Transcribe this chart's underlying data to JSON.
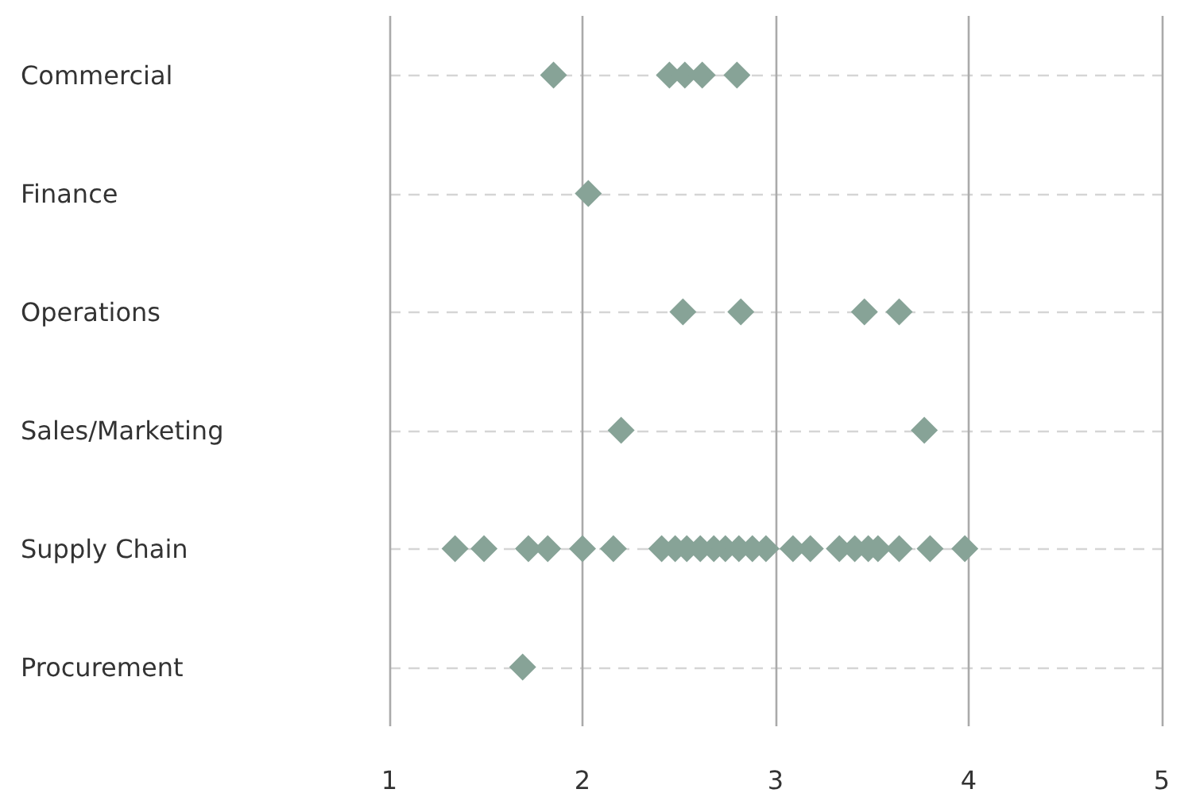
{
  "chart_data": {
    "type": "scatter",
    "orientation": "horizontal",
    "marker": "diamond",
    "grid": true,
    "categories": [
      "Commercial",
      "Finance",
      "Operations",
      "Sales/Marketing",
      "Supply Chain",
      "Procurement"
    ],
    "xlim": [
      1,
      5
    ],
    "xticks": [
      1,
      2,
      3,
      4,
      5
    ],
    "series": [
      {
        "color": "#87a397",
        "x": [
          "Commercial",
          "Commercial",
          "Commercial",
          "Commercial",
          "Commercial",
          "Finance",
          "Operations",
          "Operations",
          "Operations",
          "Operations",
          "Sales/Marketing",
          "Sales/Marketing",
          "Supply Chain",
          "Supply Chain",
          "Supply Chain",
          "Supply Chain",
          "Supply Chain",
          "Supply Chain",
          "Supply Chain",
          "Supply Chain",
          "Supply Chain",
          "Supply Chain",
          "Supply Chain",
          "Supply Chain",
          "Supply Chain",
          "Supply Chain",
          "Supply Chain",
          "Supply Chain",
          "Supply Chain",
          "Supply Chain",
          "Supply Chain",
          "Supply Chain",
          "Supply Chain",
          "Supply Chain",
          "Supply Chain",
          "Supply Chain",
          "Procurement"
        ],
        "values": [
          1.85,
          2.45,
          2.53,
          2.62,
          2.8,
          2.03,
          2.52,
          2.82,
          3.46,
          3.64,
          2.2,
          3.77,
          1.34,
          1.49,
          1.72,
          1.82,
          2.0,
          2.16,
          2.41,
          2.48,
          2.54,
          2.61,
          2.68,
          2.74,
          2.81,
          2.88,
          2.95,
          3.09,
          3.18,
          3.33,
          3.41,
          3.48,
          3.53,
          3.64,
          3.8,
          3.98,
          1.69
        ]
      }
    ]
  }
}
